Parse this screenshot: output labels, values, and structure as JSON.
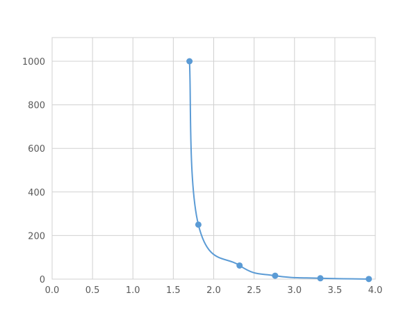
{
  "chart_data": {
    "type": "line",
    "title": "",
    "xlabel": "",
    "ylabel": "",
    "xlim": [
      0,
      4.0
    ],
    "ylim": [
      0,
      1100
    ],
    "grid": true,
    "x_ticks": [
      "0.0",
      "0.5",
      "1.0",
      "1.5",
      "2.0",
      "2.5",
      "3.0",
      "3.5",
      "4.0"
    ],
    "y_ticks": [
      "0",
      "200",
      "400",
      "600",
      "800",
      "1000"
    ],
    "series": [
      {
        "color": "#5b9bd5",
        "smooth": true,
        "markers": true,
        "x": [
          1.7,
          1.81,
          2.32,
          2.76,
          3.32,
          3.92
        ],
        "y": [
          1000,
          250,
          62.5,
          15.6,
          3.9,
          0.5
        ]
      }
    ]
  }
}
